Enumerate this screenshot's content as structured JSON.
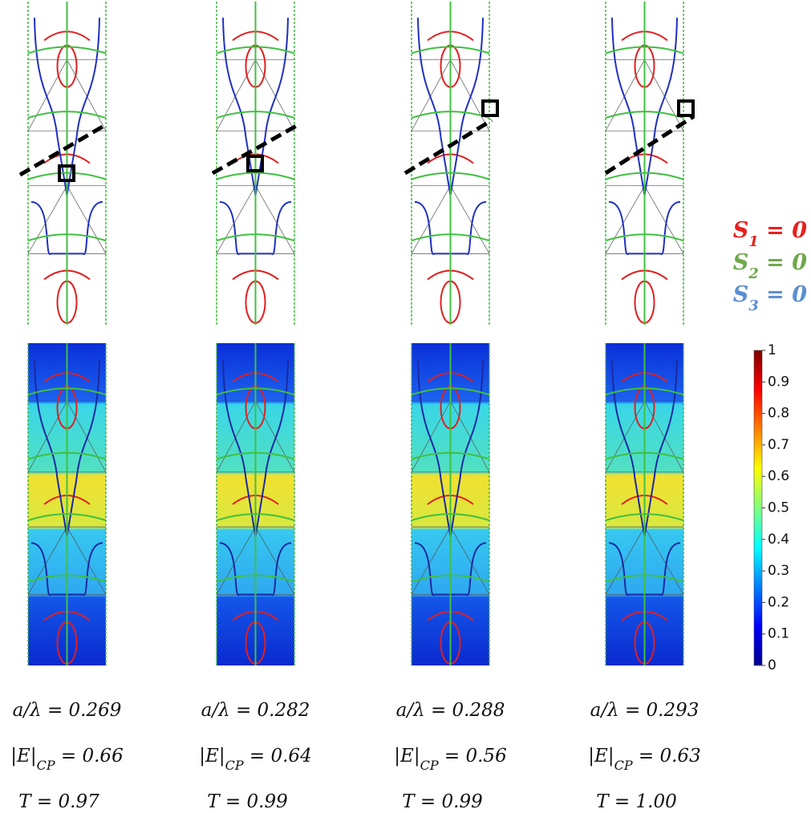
{
  "panels": [
    {
      "a_lambda": "a/λ = 0.269",
      "e_cp": {
        "base": "|E|",
        "sub": "CP",
        "rest": " = 0.66"
      },
      "t": "T = 0.97"
    },
    {
      "a_lambda": "a/λ = 0.282",
      "e_cp": {
        "base": "|E|",
        "sub": "CP",
        "rest": " = 0.64"
      },
      "t": "T = 0.99"
    },
    {
      "a_lambda": "a/λ = 0.288",
      "e_cp": {
        "base": "|E|",
        "sub": "CP",
        "rest": " = 0.56"
      },
      "t": "T = 0.99"
    },
    {
      "a_lambda": "a/λ = 0.293",
      "e_cp": {
        "base": "|E|",
        "sub": "CP",
        "rest": " = 0.63"
      },
      "t": "T = 1.00"
    }
  ],
  "legend": [
    {
      "symbol": "S",
      "sub": "1",
      "rest": " = 0",
      "color": "#e8201c"
    },
    {
      "symbol": "S",
      "sub": "2",
      "rest": " = 0",
      "color": "#6fa84a"
    },
    {
      "symbol": "S",
      "sub": "3",
      "rest": " = 0",
      "color": "#5b8fd0"
    }
  ],
  "colorbar": {
    "lim": [
      0,
      1
    ],
    "ticks": [
      0,
      0.1,
      0.2,
      0.3,
      0.4,
      0.5,
      0.6,
      0.7,
      0.8,
      0.9,
      1
    ]
  }
}
